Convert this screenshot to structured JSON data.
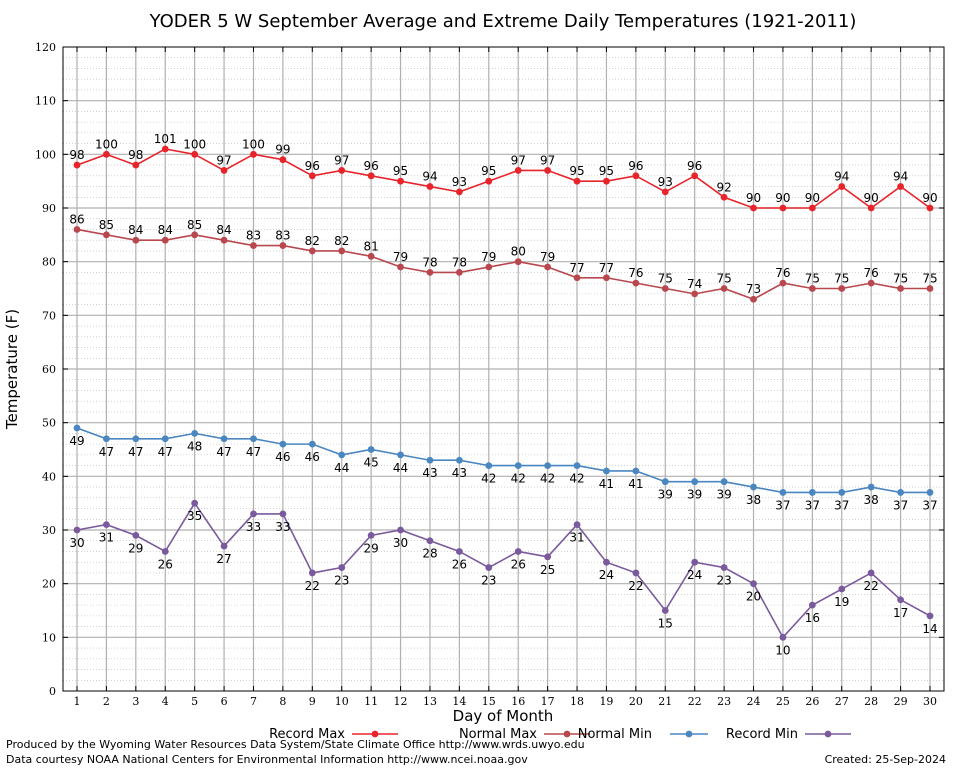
{
  "chart_data": {
    "type": "line",
    "title": "YODER 5 W September Average and Extreme Daily Temperatures (1921-2011)",
    "xlabel": "Day of Month",
    "ylabel": "Temperature (F)",
    "x": [
      1,
      2,
      3,
      4,
      5,
      6,
      7,
      8,
      9,
      10,
      11,
      12,
      13,
      14,
      15,
      16,
      17,
      18,
      19,
      20,
      21,
      22,
      23,
      24,
      25,
      26,
      27,
      28,
      29,
      30
    ],
    "xlim": [
      1,
      30
    ],
    "ylim": [
      0,
      120
    ],
    "yticks": [
      0,
      10,
      20,
      30,
      40,
      50,
      60,
      70,
      80,
      90,
      100,
      110,
      120
    ],
    "grid": true,
    "legend_position": "bottom",
    "series": [
      {
        "name": "Record Max",
        "color": "#e8242b",
        "label_position": "above",
        "values": [
          98,
          100,
          98,
          101,
          100,
          97,
          100,
          99,
          96,
          97,
          96,
          95,
          94,
          93,
          95,
          97,
          97,
          95,
          95,
          96,
          93,
          96,
          92,
          90,
          90,
          90,
          94,
          90,
          94,
          90
        ]
      },
      {
        "name": "Normal Max",
        "color": "#b8484e",
        "label_position": "above",
        "values": [
          86,
          85,
          84,
          84,
          85,
          84,
          83,
          83,
          82,
          82,
          81,
          79,
          78,
          78,
          79,
          80,
          79,
          77,
          77,
          76,
          75,
          74,
          75,
          73,
          76,
          75,
          75,
          76,
          75,
          75
        ]
      },
      {
        "name": "Normal Min",
        "color": "#4a86c0",
        "label_position": "below",
        "values": [
          49,
          47,
          47,
          47,
          48,
          47,
          47,
          46,
          46,
          44,
          45,
          44,
          43,
          43,
          42,
          42,
          42,
          42,
          41,
          41,
          39,
          39,
          39,
          38,
          37,
          37,
          37,
          38,
          37,
          37
        ]
      },
      {
        "name": "Record Min",
        "color": "#7a5a9c",
        "label_position": "below",
        "values": [
          30,
          31,
          29,
          26,
          35,
          27,
          33,
          33,
          22,
          23,
          29,
          30,
          28,
          26,
          23,
          26,
          25,
          31,
          24,
          22,
          15,
          24,
          23,
          20,
          10,
          16,
          19,
          22,
          17,
          14
        ]
      }
    ]
  },
  "footer": {
    "produced_by": "Produced by the Wyoming Water Resources Data System/State Climate Office http://www.wrds.uwyo.edu",
    "courtesy": "Data courtesy NOAA National Centers for Environmental Information http://www.ncei.noaa.gov",
    "created": "Created:  25-Sep-2024"
  }
}
